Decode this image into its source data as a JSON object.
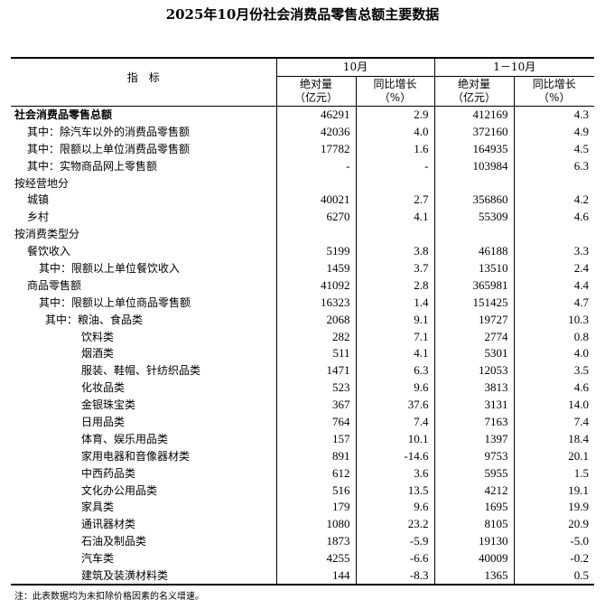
{
  "title": "2025年10月份社会消费品零售总额主要数据",
  "header": {
    "indicator": "指　标",
    "period1": "10月",
    "period2": "1－10月",
    "abs_line1": "绝对量",
    "abs_line2": "（亿元）",
    "yoy_line1": "同比增长",
    "yoy_line2": "（%）"
  },
  "rows": [
    {
      "label": "社会消费品零售总额",
      "level": 0,
      "bold": true,
      "v": [
        "46291",
        "2.9",
        "412169",
        "4.3"
      ]
    },
    {
      "label": "其中：除汽车以外的消费品零售额",
      "level": 1,
      "v": [
        "42036",
        "4.0",
        "372160",
        "4.9"
      ]
    },
    {
      "label": "其中：限额以上单位消费品零售额",
      "level": 1,
      "v": [
        "17782",
        "1.6",
        "164935",
        "4.5"
      ]
    },
    {
      "label": "其中：实物商品网上零售额",
      "level": 1,
      "v": [
        "-",
        "-",
        "103984",
        "6.3"
      ]
    },
    {
      "label": "按经营地分",
      "level": 0,
      "v": [
        "",
        "",
        "",
        ""
      ]
    },
    {
      "label": "城镇",
      "level": 1,
      "v": [
        "40021",
        "2.7",
        "356860",
        "4.2"
      ]
    },
    {
      "label": "乡村",
      "level": 1,
      "v": [
        "6270",
        "4.1",
        "55309",
        "4.6"
      ]
    },
    {
      "label": "按消费类型分",
      "level": 0,
      "v": [
        "",
        "",
        "",
        ""
      ]
    },
    {
      "label": "餐饮收入",
      "level": 1,
      "v": [
        "5199",
        "3.8",
        "46188",
        "3.3"
      ]
    },
    {
      "label": "其中：限额以上单位餐饮收入",
      "level": 2,
      "v": [
        "1459",
        "3.7",
        "13510",
        "2.4"
      ]
    },
    {
      "label": "商品零售额",
      "level": 1,
      "v": [
        "41092",
        "2.8",
        "365981",
        "4.4"
      ]
    },
    {
      "label": "其中：限额以上单位商品零售额",
      "level": 2,
      "v": [
        "16323",
        "1.4",
        "151425",
        "4.7"
      ]
    },
    {
      "label": "其中：粮油、食品类",
      "level": 3,
      "v": [
        "2068",
        "9.1",
        "19727",
        "10.3"
      ]
    },
    {
      "label": "饮料类",
      "level": 4,
      "v": [
        "282",
        "7.1",
        "2774",
        "0.8"
      ]
    },
    {
      "label": "烟酒类",
      "level": 4,
      "v": [
        "511",
        "4.1",
        "5301",
        "4.0"
      ]
    },
    {
      "label": "服装、鞋帽、针纺织品类",
      "level": 4,
      "v": [
        "1471",
        "6.3",
        "12053",
        "3.5"
      ]
    },
    {
      "label": "化妆品类",
      "level": 4,
      "v": [
        "523",
        "9.6",
        "3813",
        "4.6"
      ]
    },
    {
      "label": "金银珠宝类",
      "level": 4,
      "v": [
        "367",
        "37.6",
        "3131",
        "14.0"
      ]
    },
    {
      "label": "日用品类",
      "level": 4,
      "v": [
        "764",
        "7.4",
        "7163",
        "7.4"
      ]
    },
    {
      "label": "体育、娱乐用品类",
      "level": 4,
      "v": [
        "157",
        "10.1",
        "1397",
        "18.4"
      ]
    },
    {
      "label": "家用电器和音像器材类",
      "level": 4,
      "v": [
        "891",
        "-14.6",
        "9753",
        "20.1"
      ]
    },
    {
      "label": "中西药品类",
      "level": 4,
      "v": [
        "612",
        "3.6",
        "5955",
        "1.5"
      ]
    },
    {
      "label": "文化办公用品类",
      "level": 4,
      "v": [
        "516",
        "13.5",
        "4212",
        "19.1"
      ]
    },
    {
      "label": "家具类",
      "level": 4,
      "v": [
        "179",
        "9.6",
        "1695",
        "19.9"
      ]
    },
    {
      "label": "通讯器材类",
      "level": 4,
      "v": [
        "1080",
        "23.2",
        "8105",
        "20.9"
      ]
    },
    {
      "label": "石油及制品类",
      "level": 4,
      "v": [
        "1873",
        "-5.9",
        "19130",
        "-5.0"
      ]
    },
    {
      "label": "汽车类",
      "level": 4,
      "v": [
        "4255",
        "-6.6",
        "40009",
        "-0.2"
      ]
    },
    {
      "label": "建筑及装潢材料类",
      "level": 4,
      "v": [
        "144",
        "-8.3",
        "1365",
        "0.5"
      ]
    }
  ],
  "note": "注：此表数据均为未扣除价格因素的名义增速。"
}
